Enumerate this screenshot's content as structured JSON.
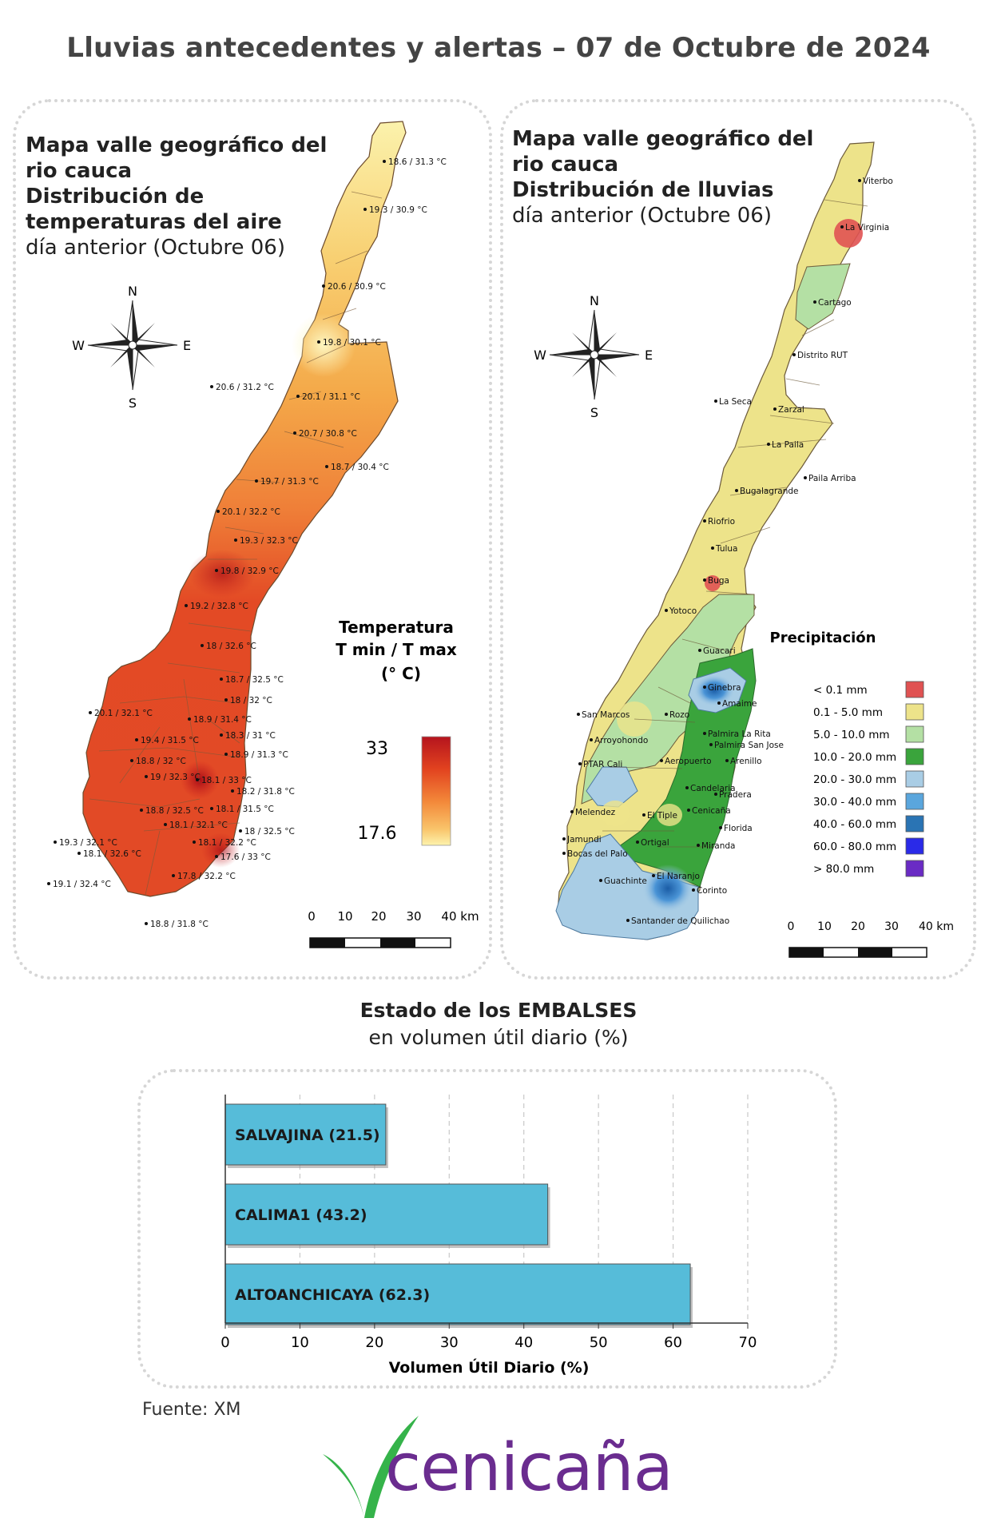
{
  "title": "Lluvias antecedentes y alertas – 07 de Octubre de 2024",
  "temp_map": {
    "title_line1": "Mapa valle geográfico del",
    "title_line2": "rio cauca",
    "title_line3": "Distribución de",
    "title_line4": "temperaturas del aire",
    "subtitle": "día anterior (Octubre 06)",
    "legend_title1": "Temperatura",
    "legend_title2": "T min / T max",
    "legend_title3": "(° C)",
    "legend_max": "33",
    "legend_min": "17.6",
    "legend_colors": [
      "#b5141e",
      "#e2431f",
      "#f3893a",
      "#f9c46a",
      "#fdf3ad"
    ],
    "labels": [
      "18.6 / 31.3 °C",
      "19.3 / 30.9 °C",
      "20.6 / 30.9 °C",
      "19.8 / 30.1 °C",
      "20.6 / 31.2 °C",
      "20.1 / 31.1 °C",
      "20.7 / 30.8 °C",
      "18.7 / 30.4 °C",
      "19.7 / 31.3 °C",
      "20.1 / 32.2 °C",
      "19.3 / 32.3 °C",
      "19.8 / 32.9 °C",
      "19.2 / 32.8 °C",
      "18 / 32.6 °C",
      "18.7 / 32.5 °C",
      "18 / 32 °C",
      "20.1 / 32.1 °C",
      "18.9 / 31.4 °C",
      "18.3 / 31 °C",
      "19.4 / 31.5 °C",
      "18.9 / 31.3 °C",
      "18.8 / 32 °C",
      "19 / 32.3 °C",
      "18.1 / 33 °C",
      "18.2 / 31.8 °C",
      "18.8 / 32.5 °C",
      "18.1 / 31.5 °C",
      "18.1 / 32.1 °C",
      "18 / 32.5 °C",
      "19.3 / 32.1 °C",
      "18.1 / 32.2 °C",
      "18.1 / 32.6 °C",
      "17.6 / 33 °C",
      "17.8 / 32.2 °C",
      "19.1 / 32.4 °C",
      "18.8 / 31.8 °C"
    ],
    "scale": [
      "0",
      "10",
      "20",
      "30",
      "40 km"
    ],
    "compass": {
      "n": "N",
      "s": "S",
      "e": "E",
      "w": "W"
    }
  },
  "rain_map": {
    "title_line1": "Mapa valle geográfico del",
    "title_line2": "rio cauca",
    "title_line3": "Distribución de lluvias",
    "subtitle": "día anterior (Octubre 06)",
    "legend_title": "Precipitación",
    "legend": [
      {
        "label": "< 0.1 mm",
        "color": "#e05252"
      },
      {
        "label": "0.1 - 5.0 mm",
        "color": "#ede38a"
      },
      {
        "label": "5.0 - 10.0 mm",
        "color": "#b4e0a4"
      },
      {
        "label": "10.0 - 20.0 mm",
        "color": "#3aa43c"
      },
      {
        "label": "20.0 - 30.0 mm",
        "color": "#a9cde5"
      },
      {
        "label": "30.0 - 40.0 mm",
        "color": "#5aa6dd"
      },
      {
        "label": "40.0 - 60.0 mm",
        "color": "#2a74b4"
      },
      {
        "label": "60.0 - 80.0 mm",
        "color": "#2a2ae8"
      },
      {
        "label": "> 80.0 mm",
        "color": "#6a2bc4"
      }
    ],
    "stations": [
      "Viterbo",
      "La Virginia",
      "Cartago",
      "Distrito RUT",
      "La Seca",
      "Zarzal",
      "La Paila",
      "Paila Arriba",
      "Bugalagrande",
      "Riofrio",
      "Tulua",
      "Buga",
      "Yotoco",
      "Guacari",
      "Ginebra",
      "Amaime",
      "San Marcos",
      "Rozo",
      "Palmira La Rita",
      "Arroyohondo",
      "Palmira San Jose",
      "Aeropuerto",
      "Arenillo",
      "PTAR Cali",
      "Candelaria",
      "Pradera",
      "Melendez",
      "El Tiple",
      "Cenicaña",
      "Florida",
      "Jamundi",
      "Bocas del Palo",
      "Ortigal",
      "Miranda",
      "El Naranjo",
      "Guachinte",
      "Corinto",
      "Santander de Quilichao"
    ],
    "scale": [
      "0",
      "10",
      "20",
      "30",
      "40 km"
    ],
    "compass": {
      "n": "N",
      "s": "S",
      "e": "E",
      "w": "W"
    }
  },
  "reservoirs": {
    "title": "Estado de los EMBALSES",
    "subtitle": "en volumen útil diario (%)",
    "source": "Fuente: XM"
  },
  "chart_data": {
    "type": "bar",
    "orientation": "horizontal",
    "categories": [
      "SALVAJINA (21.5)",
      "CALIMA1 (43.2)",
      "ALTOANCHICAYA (62.3)"
    ],
    "values": [
      21.5,
      43.2,
      62.3
    ],
    "xlabel": "Volumen Útil Diario (%)",
    "xlim": [
      0,
      70
    ],
    "xticks": [
      "0",
      "10",
      "20",
      "30",
      "40",
      "50",
      "60",
      "70"
    ],
    "grid": "vertical-dashed",
    "bar_color": "#56bcd9"
  },
  "logo": {
    "text": "cenicaña",
    "green": "#35b34a",
    "purple": "#6a2c8f"
  }
}
